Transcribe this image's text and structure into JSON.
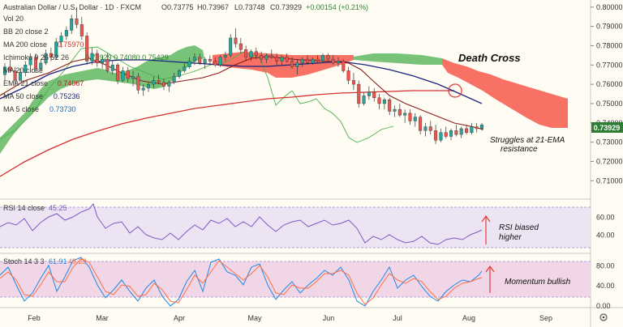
{
  "header": {
    "title": "Australian Dollar / U.S. Dollar · 1D · FXCM",
    "open": "O0.73775",
    "high": "H0.73967",
    "low": "L0.73748",
    "close": "C0.73929",
    "change": "+0.00154 (+0.21%)"
  },
  "legend": [
    {
      "label": "Vol 20",
      "value": "",
      "color": "#444444"
    },
    {
      "label": "BB 20 close 2",
      "value": "",
      "color": "#444444"
    },
    {
      "label": "MA 200 close",
      "value": "0.75970",
      "color": "#d32f2f"
    },
    {
      "label": "Ichimoku 9 26 52 26",
      "value": "0.73929 0.74080 0.75429",
      "color": "#2e7d32"
    },
    {
      "label": "MA 20 close",
      "value": "",
      "color": "#444444"
    },
    {
      "label": "EMA 21 close",
      "value": "0.74067",
      "color": "#b71c1c"
    },
    {
      "label": "MA 50 close",
      "value": "0.75236",
      "color": "#1a237e"
    },
    {
      "label": "MA 5 close",
      "value": "0.73730",
      "color": "#1565c0"
    }
  ],
  "annotations": {
    "death_cross": "Death Cross",
    "struggles_1": "Struggles at 21-EMA",
    "struggles_2": "resistance",
    "rsi_1": "RSI biased",
    "rsi_2": "higher",
    "stoch": "Momentum bullish"
  },
  "rsi_legend": {
    "label": "RSI 14 close",
    "value": "45.25"
  },
  "stoch_legend": {
    "label": "Stoch 14 3 3",
    "k": "61.91",
    "d": "49.23"
  },
  "price_label": "0.73929",
  "colors": {
    "up": "#26a69a",
    "down": "#ef5350",
    "cloud_green": "#4caf50",
    "cloud_red": "#f44336",
    "price_tag": "#2e7d32"
  },
  "chart_data": {
    "type": "candlestick",
    "x_ticks": [
      "Feb",
      "Mar",
      "Apr",
      "May",
      "Jun",
      "Jul",
      "Aug",
      "Sep"
    ],
    "price_axis": {
      "ticks": [
        0.8,
        0.79,
        0.78,
        0.77,
        0.76,
        0.75,
        0.74,
        0.73,
        0.72,
        0.71
      ],
      "ylim": [
        0.703,
        0.802
      ]
    },
    "rsi_axis": {
      "ticks": [
        60,
        40
      ],
      "ylim": [
        20,
        80
      ]
    },
    "stoch_axis": {
      "ticks": [
        80,
        40,
        0
      ],
      "ylim": [
        0,
        100
      ]
    },
    "last_close": 0.73929,
    "candles": [
      [
        0.765,
        0.771,
        0.762,
        0.769
      ],
      [
        0.769,
        0.773,
        0.766,
        0.767
      ],
      [
        0.767,
        0.769,
        0.76,
        0.762
      ],
      [
        0.762,
        0.768,
        0.761,
        0.766
      ],
      [
        0.766,
        0.772,
        0.764,
        0.77
      ],
      [
        0.77,
        0.776,
        0.768,
        0.774
      ],
      [
        0.774,
        0.776,
        0.766,
        0.768
      ],
      [
        0.768,
        0.773,
        0.767,
        0.771
      ],
      [
        0.771,
        0.778,
        0.77,
        0.776
      ],
      [
        0.776,
        0.779,
        0.772,
        0.774
      ],
      [
        0.774,
        0.784,
        0.773,
        0.782
      ],
      [
        0.782,
        0.787,
        0.779,
        0.785
      ],
      [
        0.785,
        0.79,
        0.783,
        0.788
      ],
      [
        0.788,
        0.796,
        0.786,
        0.794
      ],
      [
        0.794,
        0.8,
        0.789,
        0.791
      ],
      [
        0.791,
        0.795,
        0.783,
        0.785
      ],
      [
        0.785,
        0.787,
        0.77,
        0.772
      ],
      [
        0.772,
        0.779,
        0.77,
        0.776
      ],
      [
        0.776,
        0.778,
        0.769,
        0.771
      ],
      [
        0.771,
        0.775,
        0.768,
        0.773
      ],
      [
        0.773,
        0.776,
        0.766,
        0.767
      ],
      [
        0.767,
        0.772,
        0.765,
        0.77
      ],
      [
        0.77,
        0.771,
        0.76,
        0.762
      ],
      [
        0.762,
        0.769,
        0.761,
        0.767
      ],
      [
        0.767,
        0.769,
        0.761,
        0.763
      ],
      [
        0.763,
        0.767,
        0.759,
        0.764
      ],
      [
        0.764,
        0.766,
        0.755,
        0.757
      ],
      [
        0.757,
        0.76,
        0.754,
        0.758
      ],
      [
        0.758,
        0.761,
        0.756,
        0.76
      ],
      [
        0.76,
        0.764,
        0.758,
        0.762
      ],
      [
        0.762,
        0.765,
        0.76,
        0.761
      ],
      [
        0.761,
        0.763,
        0.757,
        0.759
      ],
      [
        0.759,
        0.762,
        0.756,
        0.761
      ],
      [
        0.761,
        0.766,
        0.76,
        0.764
      ],
      [
        0.764,
        0.768,
        0.763,
        0.767
      ],
      [
        0.767,
        0.771,
        0.766,
        0.769
      ],
      [
        0.769,
        0.774,
        0.768,
        0.772
      ],
      [
        0.772,
        0.776,
        0.77,
        0.774
      ],
      [
        0.774,
        0.776,
        0.77,
        0.771
      ],
      [
        0.771,
        0.774,
        0.768,
        0.773
      ],
      [
        0.773,
        0.775,
        0.77,
        0.772
      ],
      [
        0.772,
        0.774,
        0.769,
        0.77
      ],
      [
        0.77,
        0.775,
        0.769,
        0.774
      ],
      [
        0.774,
        0.777,
        0.772,
        0.775
      ],
      [
        0.775,
        0.786,
        0.774,
        0.784
      ],
      [
        0.784,
        0.789,
        0.779,
        0.781
      ],
      [
        0.781,
        0.784,
        0.776,
        0.778
      ],
      [
        0.778,
        0.78,
        0.772,
        0.774
      ],
      [
        0.774,
        0.778,
        0.772,
        0.777
      ],
      [
        0.777,
        0.779,
        0.773,
        0.775
      ],
      [
        0.775,
        0.777,
        0.771,
        0.773
      ],
      [
        0.773,
        0.776,
        0.771,
        0.775
      ],
      [
        0.775,
        0.778,
        0.773,
        0.774
      ],
      [
        0.774,
        0.776,
        0.77,
        0.772
      ],
      [
        0.772,
        0.775,
        0.77,
        0.774
      ],
      [
        0.774,
        0.776,
        0.771,
        0.772
      ],
      [
        0.772,
        0.774,
        0.768,
        0.769
      ],
      [
        0.769,
        0.773,
        0.765,
        0.771
      ],
      [
        0.771,
        0.774,
        0.769,
        0.773
      ],
      [
        0.773,
        0.775,
        0.77,
        0.771
      ],
      [
        0.771,
        0.774,
        0.77,
        0.773
      ],
      [
        0.773,
        0.775,
        0.771,
        0.772
      ],
      [
        0.772,
        0.776,
        0.771,
        0.775
      ],
      [
        0.775,
        0.776,
        0.772,
        0.773
      ],
      [
        0.773,
        0.775,
        0.77,
        0.771
      ],
      [
        0.771,
        0.774,
        0.769,
        0.772
      ],
      [
        0.772,
        0.773,
        0.766,
        0.767
      ],
      [
        0.767,
        0.769,
        0.76,
        0.762
      ],
      [
        0.762,
        0.766,
        0.757,
        0.76
      ],
      [
        0.76,
        0.762,
        0.748,
        0.75
      ],
      [
        0.75,
        0.756,
        0.749,
        0.754
      ],
      [
        0.754,
        0.759,
        0.752,
        0.756
      ],
      [
        0.756,
        0.758,
        0.751,
        0.753
      ],
      [
        0.753,
        0.755,
        0.747,
        0.75
      ],
      [
        0.75,
        0.753,
        0.747,
        0.752
      ],
      [
        0.752,
        0.753,
        0.744,
        0.746
      ],
      [
        0.746,
        0.749,
        0.743,
        0.747
      ],
      [
        0.747,
        0.75,
        0.743,
        0.744
      ],
      [
        0.744,
        0.747,
        0.74,
        0.745
      ],
      [
        0.745,
        0.747,
        0.739,
        0.741
      ],
      [
        0.741,
        0.745,
        0.738,
        0.743
      ],
      [
        0.743,
        0.744,
        0.734,
        0.736
      ],
      [
        0.736,
        0.74,
        0.733,
        0.738
      ],
      [
        0.738,
        0.741,
        0.734,
        0.736
      ],
      [
        0.736,
        0.739,
        0.729,
        0.731
      ],
      [
        0.731,
        0.737,
        0.73,
        0.735
      ],
      [
        0.735,
        0.738,
        0.732,
        0.733
      ],
      [
        0.733,
        0.737,
        0.731,
        0.736
      ],
      [
        0.736,
        0.739,
        0.733,
        0.734
      ],
      [
        0.734,
        0.738,
        0.732,
        0.737
      ],
      [
        0.737,
        0.739,
        0.734,
        0.735
      ],
      [
        0.735,
        0.74,
        0.734,
        0.738
      ],
      [
        0.738,
        0.74,
        0.735,
        0.737
      ],
      [
        0.737,
        0.74,
        0.736,
        0.739
      ]
    ]
  }
}
